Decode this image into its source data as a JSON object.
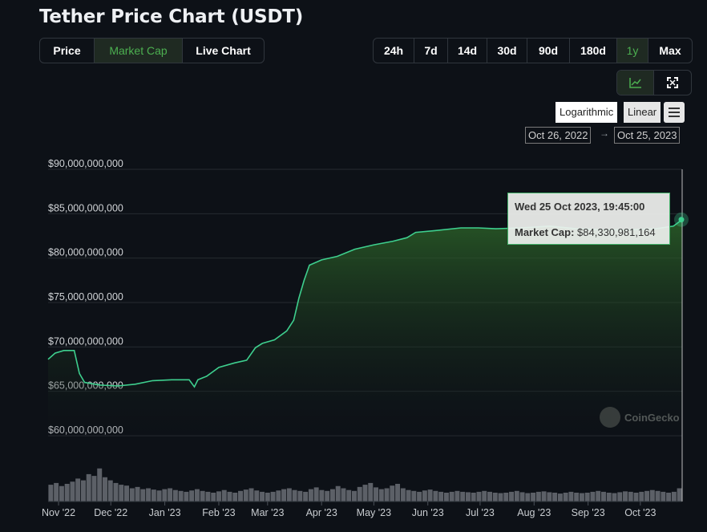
{
  "page": {
    "title": "Tether Price Chart (USDT)"
  },
  "tabs": [
    {
      "label": "Price",
      "active": false
    },
    {
      "label": "Market Cap",
      "active": true
    },
    {
      "label": "Live Chart",
      "active": false
    }
  ],
  "ranges": [
    {
      "label": "24h",
      "active": false
    },
    {
      "label": "7d",
      "active": false
    },
    {
      "label": "14d",
      "active": false
    },
    {
      "label": "30d",
      "active": false
    },
    {
      "label": "90d",
      "active": false
    },
    {
      "label": "180d",
      "active": false
    },
    {
      "label": "1y",
      "active": true
    },
    {
      "label": "Max",
      "active": false
    }
  ],
  "view_buttons": {
    "line_icon": "line-chart-icon",
    "expand_icon": "fullscreen-icon"
  },
  "scale": {
    "log_label": "Logarithmic",
    "linear_label": "Linear",
    "menu_icon": "hamburger-menu-icon"
  },
  "date_range": {
    "from": "Oct 26, 2022",
    "arrow": "→",
    "to": "Oct 25, 2023"
  },
  "tooltip": {
    "date": "Wed 25 Oct 2023, 19:45:00",
    "label": "Market Cap:",
    "value": "$84,330,981,164"
  },
  "watermark": {
    "text": "CoinGecko"
  },
  "colors": {
    "line": "#3ecf8e",
    "accent": "#4caf50",
    "background": "#0d1117",
    "volume": "#6b6f75"
  },
  "chart_data": {
    "type": "area",
    "title": "",
    "xlabel": "",
    "ylabel": "",
    "ylim": [
      60000000000,
      90000000000
    ],
    "yticks": [
      {
        "value": 90000000000,
        "label": "$90,000,000,000"
      },
      {
        "value": 85000000000,
        "label": "$85,000,000,000"
      },
      {
        "value": 80000000000,
        "label": "$80,000,000,000"
      },
      {
        "value": 75000000000,
        "label": "$75,000,000,000"
      },
      {
        "value": 70000000000,
        "label": "$70,000,000,000"
      },
      {
        "value": 65000000000,
        "label": "$65,000,000,000"
      },
      {
        "value": 60000000000,
        "label": "$60,000,000,000"
      }
    ],
    "xlim": [
      "2022-10-26",
      "2023-10-25"
    ],
    "xticks": [
      {
        "date": "2022-11-01",
        "label": "Nov '22"
      },
      {
        "date": "2022-12-01",
        "label": "Dec '22"
      },
      {
        "date": "2023-01-01",
        "label": "Jan '23"
      },
      {
        "date": "2023-02-01",
        "label": "Feb '23"
      },
      {
        "date": "2023-03-01",
        "label": "Mar '23"
      },
      {
        "date": "2023-04-01",
        "label": "Apr '23"
      },
      {
        "date": "2023-05-01",
        "label": "May '23"
      },
      {
        "date": "2023-06-01",
        "label": "Jun '23"
      },
      {
        "date": "2023-07-01",
        "label": "Jul '23"
      },
      {
        "date": "2023-08-01",
        "label": "Aug '23"
      },
      {
        "date": "2023-09-01",
        "label": "Sep '23"
      },
      {
        "date": "2023-10-01",
        "label": "Oct '23"
      }
    ],
    "grid": true,
    "legend": "none",
    "series": [
      {
        "points": [
          [
            "2022-10-26",
            68600000000
          ],
          [
            "2022-10-30",
            69300000000
          ],
          [
            "2022-11-04",
            69600000000
          ],
          [
            "2022-11-10",
            69600000000
          ],
          [
            "2022-11-13",
            67000000000
          ],
          [
            "2022-11-16",
            66000000000
          ],
          [
            "2022-11-25",
            65700000000
          ],
          [
            "2022-12-05",
            65600000000
          ],
          [
            "2022-12-15",
            65800000000
          ],
          [
            "2022-12-25",
            66200000000
          ],
          [
            "2023-01-05",
            66300000000
          ],
          [
            "2023-01-15",
            66300000000
          ],
          [
            "2023-01-18",
            65500000000
          ],
          [
            "2023-01-20",
            66300000000
          ],
          [
            "2023-01-25",
            66700000000
          ],
          [
            "2023-02-01",
            67700000000
          ],
          [
            "2023-02-10",
            68200000000
          ],
          [
            "2023-02-17",
            68500000000
          ],
          [
            "2023-02-22",
            69900000000
          ],
          [
            "2023-02-26",
            70400000000
          ],
          [
            "2023-03-05",
            70800000000
          ],
          [
            "2023-03-12",
            71800000000
          ],
          [
            "2023-03-16",
            73000000000
          ],
          [
            "2023-03-19",
            75500000000
          ],
          [
            "2023-03-22",
            77500000000
          ],
          [
            "2023-03-25",
            79200000000
          ],
          [
            "2023-04-01",
            79800000000
          ],
          [
            "2023-04-10",
            80200000000
          ],
          [
            "2023-04-20",
            81000000000
          ],
          [
            "2023-05-01",
            81500000000
          ],
          [
            "2023-05-12",
            81900000000
          ],
          [
            "2023-05-20",
            82300000000
          ],
          [
            "2023-05-25",
            82900000000
          ],
          [
            "2023-06-05",
            83100000000
          ],
          [
            "2023-06-20",
            83400000000
          ],
          [
            "2023-06-30",
            83400000000
          ],
          [
            "2023-07-10",
            83300000000
          ],
          [
            "2023-07-25",
            83400000000
          ],
          [
            "2023-08-10",
            83600000000
          ],
          [
            "2023-08-25",
            83300000000
          ],
          [
            "2023-09-10",
            83200000000
          ],
          [
            "2023-09-25",
            83200000000
          ],
          [
            "2023-10-10",
            83300000000
          ],
          [
            "2023-10-20",
            83600000000
          ],
          [
            "2023-10-25",
            84330981164
          ]
        ]
      }
    ],
    "volume": {
      "ylim": [
        0,
        1
      ],
      "values": [
        0.38,
        0.42,
        0.35,
        0.4,
        0.45,
        0.52,
        0.48,
        0.62,
        0.58,
        0.75,
        0.55,
        0.48,
        0.42,
        0.38,
        0.36,
        0.3,
        0.33,
        0.28,
        0.3,
        0.27,
        0.25,
        0.28,
        0.3,
        0.26,
        0.24,
        0.22,
        0.25,
        0.28,
        0.24,
        0.22,
        0.2,
        0.23,
        0.26,
        0.22,
        0.2,
        0.24,
        0.27,
        0.3,
        0.25,
        0.22,
        0.2,
        0.22,
        0.25,
        0.28,
        0.3,
        0.26,
        0.24,
        0.22,
        0.28,
        0.32,
        0.26,
        0.24,
        0.28,
        0.35,
        0.3,
        0.26,
        0.24,
        0.33,
        0.38,
        0.42,
        0.32,
        0.28,
        0.3,
        0.36,
        0.4,
        0.3,
        0.26,
        0.24,
        0.22,
        0.25,
        0.27,
        0.24,
        0.22,
        0.2,
        0.22,
        0.24,
        0.22,
        0.21,
        0.2,
        0.22,
        0.24,
        0.22,
        0.2,
        0.19,
        0.2,
        0.22,
        0.24,
        0.21,
        0.19,
        0.2,
        0.22,
        0.23,
        0.21,
        0.2,
        0.18,
        0.2,
        0.22,
        0.2,
        0.19,
        0.2,
        0.22,
        0.24,
        0.22,
        0.2,
        0.19,
        0.21,
        0.23,
        0.22,
        0.2,
        0.22,
        0.24,
        0.26,
        0.24,
        0.22,
        0.2,
        0.22,
        0.3
      ]
    }
  }
}
